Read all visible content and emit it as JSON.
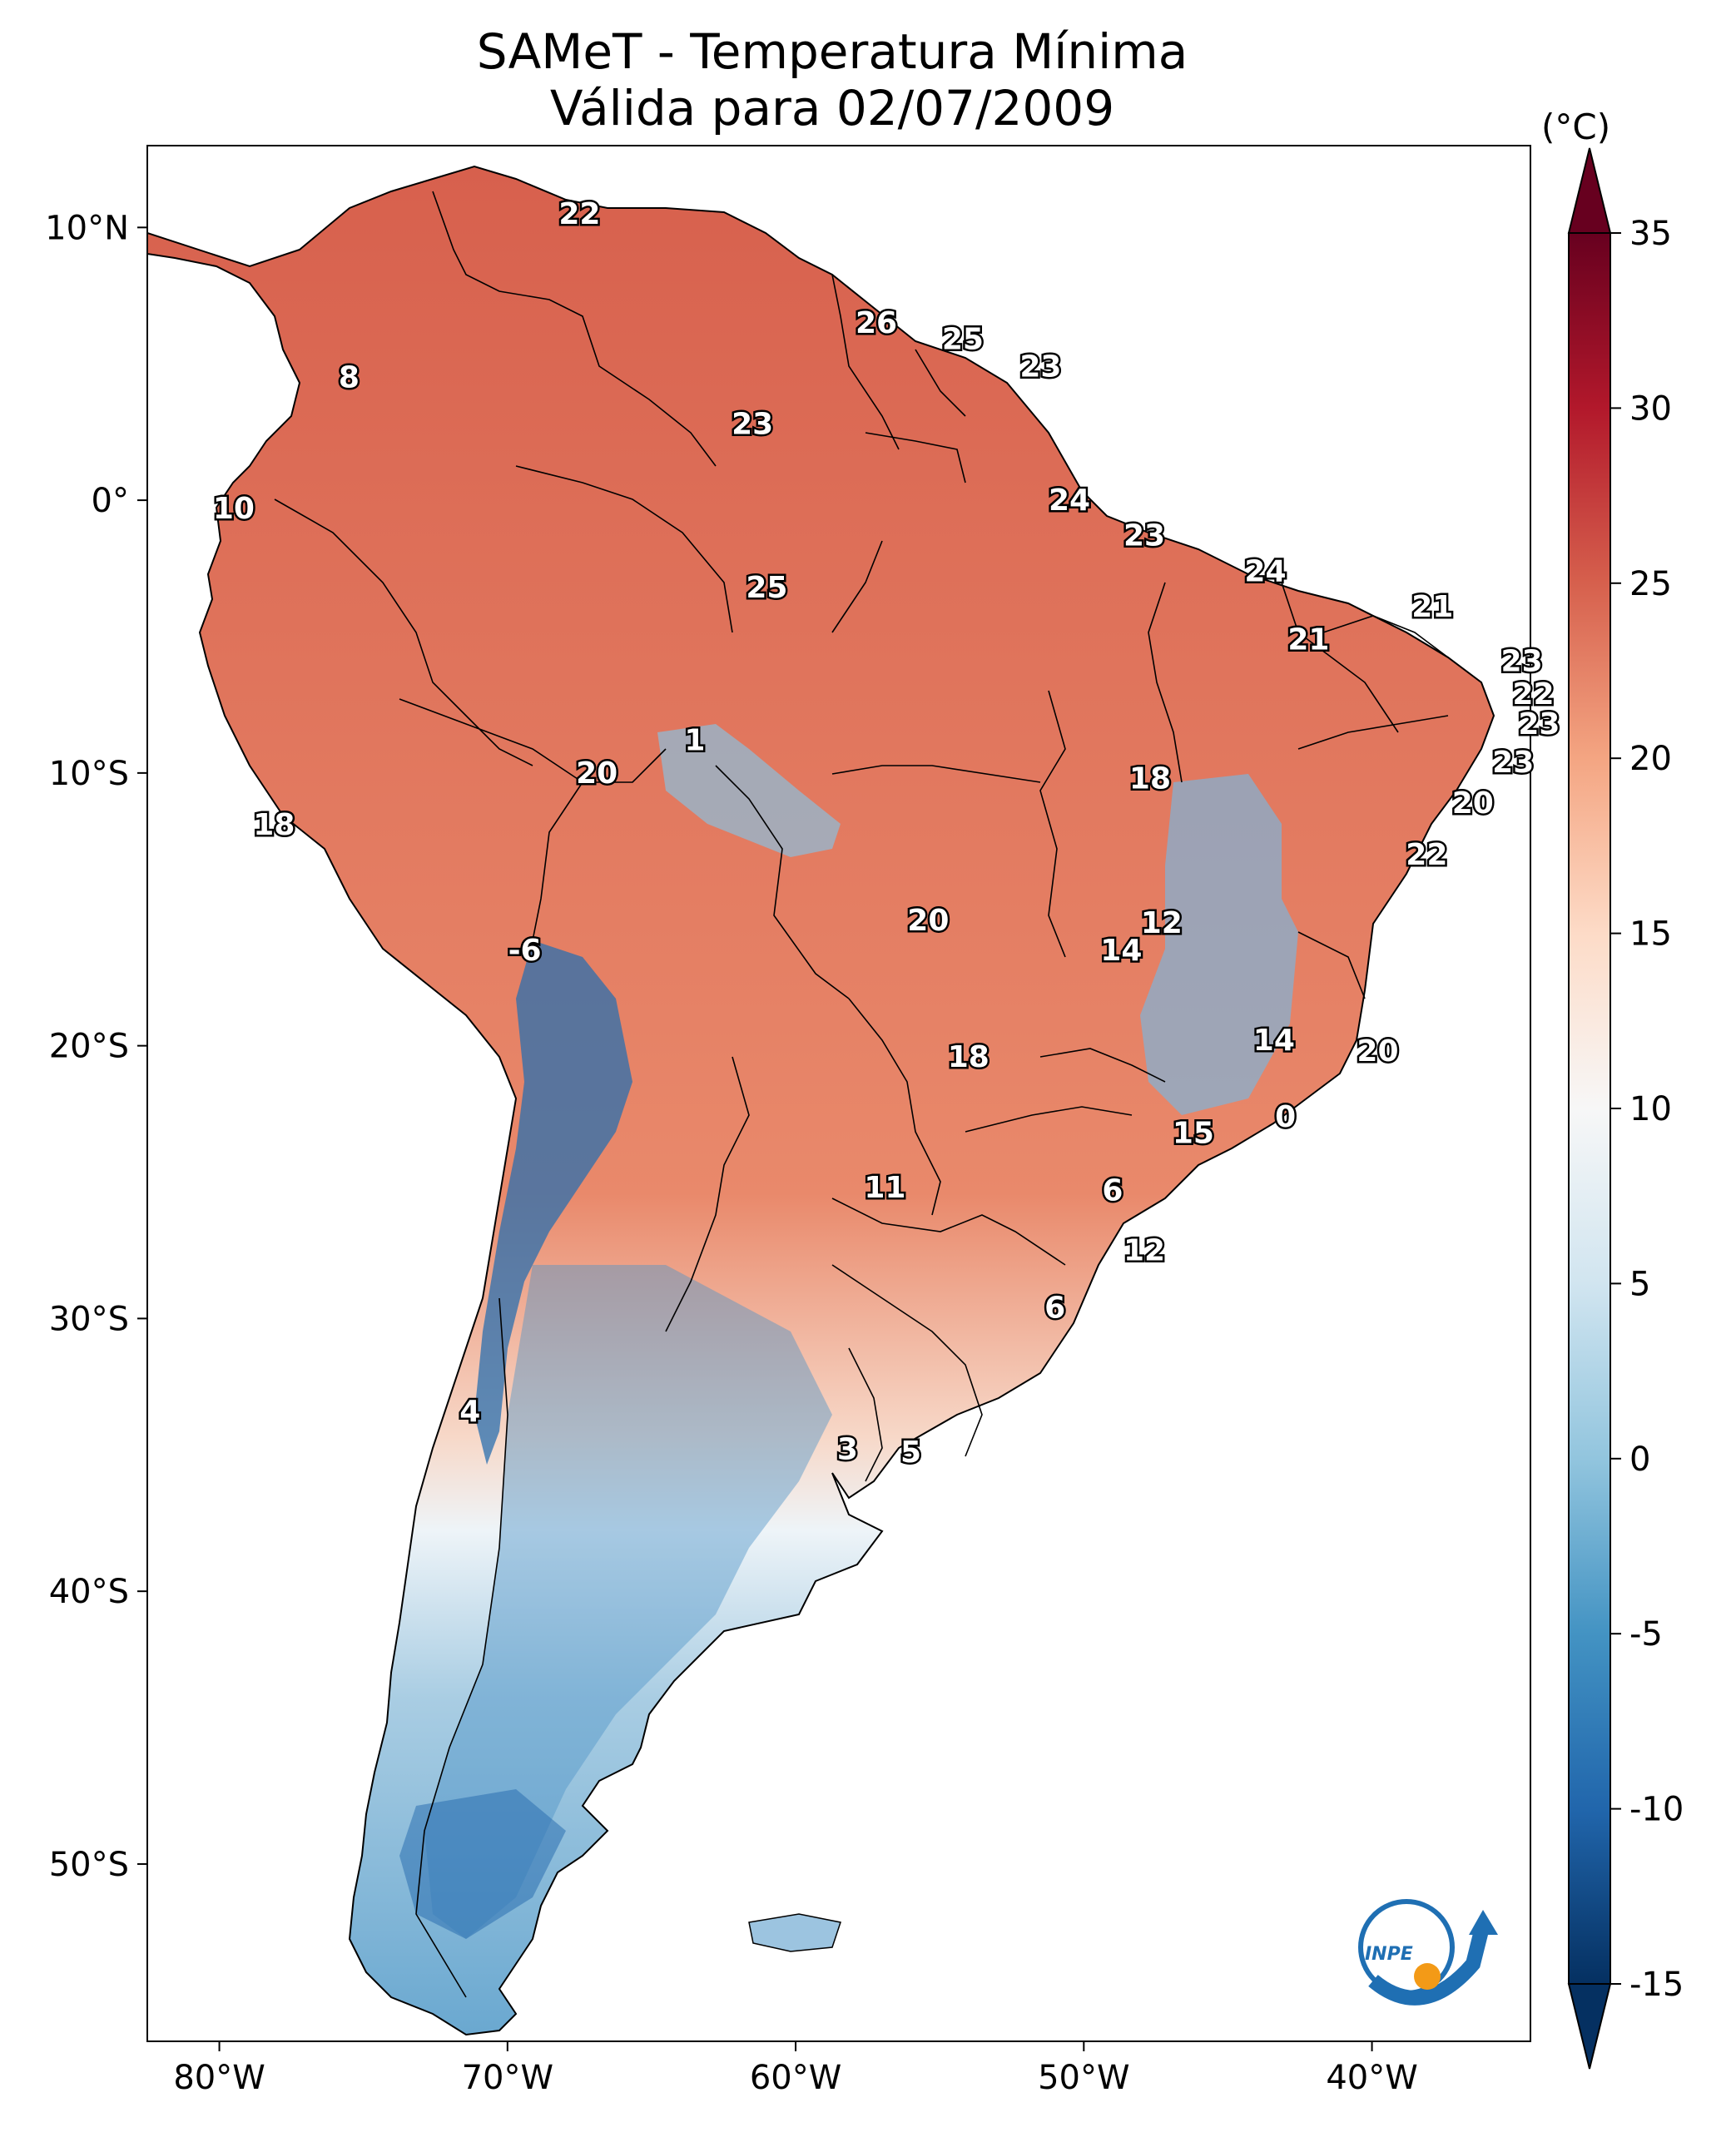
{
  "title": "SAMeT - Temperatura Mínima",
  "subtitle": "Válida para 02/07/2009",
  "colorbar": {
    "unit": "(°C)",
    "ticks": [
      "35",
      "30",
      "25",
      "20",
      "15",
      "10",
      "5",
      "0",
      "-5",
      "-10",
      "-15"
    ],
    "min": -15,
    "max": 35,
    "colors": [
      "#053061",
      "#2166ac",
      "#4393c3",
      "#92c5de",
      "#d1e5f0",
      "#f7f7f7",
      "#fddbc7",
      "#f4a582",
      "#d6604d",
      "#b2182b",
      "#67001f"
    ]
  },
  "axes": {
    "lon_labels": [
      "80°W",
      "70°W",
      "60°W",
      "50°W",
      "40°W"
    ],
    "lat_labels": [
      "10°N",
      "0°",
      "10°S",
      "20°S",
      "30°S",
      "40°S",
      "50°S"
    ]
  },
  "logo_text": "INPE",
  "map_values": [
    {
      "text": "22",
      "lon": -67.5,
      "lat": 10.5
    },
    {
      "text": "26",
      "lon": -57.2,
      "lat": 6.5
    },
    {
      "text": "25",
      "lon": -54.2,
      "lat": 5.9
    },
    {
      "text": "23",
      "lon": -51.5,
      "lat": 4.9
    },
    {
      "text": "8",
      "lon": -75.5,
      "lat": 4.5
    },
    {
      "text": "23",
      "lon": -61.5,
      "lat": 2.8
    },
    {
      "text": "24",
      "lon": -50.5,
      "lat": 0.0
    },
    {
      "text": "10",
      "lon": -79.5,
      "lat": -0.3
    },
    {
      "text": "23",
      "lon": -47.9,
      "lat": -1.3
    },
    {
      "text": "24",
      "lon": -43.7,
      "lat": -2.6
    },
    {
      "text": "25",
      "lon": -61.0,
      "lat": -3.2
    },
    {
      "text": "21",
      "lon": -37.9,
      "lat": -3.9
    },
    {
      "text": "21",
      "lon": -42.2,
      "lat": -5.1
    },
    {
      "text": "23",
      "lon": -34.8,
      "lat": -5.9
    },
    {
      "text": "22",
      "lon": -34.4,
      "lat": -7.1
    },
    {
      "text": "23",
      "lon": -34.2,
      "lat": -8.2
    },
    {
      "text": "1",
      "lon": -63.5,
      "lat": -8.8
    },
    {
      "text": "20",
      "lon": -66.9,
      "lat": -10.0
    },
    {
      "text": "18",
      "lon": -47.7,
      "lat": -10.2
    },
    {
      "text": "23",
      "lon": -35.1,
      "lat": -9.6
    },
    {
      "text": "20",
      "lon": -36.5,
      "lat": -11.1
    },
    {
      "text": "18",
      "lon": -78.1,
      "lat": -11.9
    },
    {
      "text": "22",
      "lon": -38.1,
      "lat": -13.0
    },
    {
      "text": "12",
      "lon": -47.3,
      "lat": -15.5
    },
    {
      "text": "20",
      "lon": -55.4,
      "lat": -15.4
    },
    {
      "text": "-6",
      "lon": -69.4,
      "lat": -16.5
    },
    {
      "text": "14",
      "lon": -48.7,
      "lat": -16.5
    },
    {
      "text": "14",
      "lon": -43.4,
      "lat": -19.8
    },
    {
      "text": "20",
      "lon": -39.8,
      "lat": -20.2
    },
    {
      "text": "18",
      "lon": -54.0,
      "lat": -20.4
    },
    {
      "text": "0",
      "lon": -43.0,
      "lat": -22.6
    },
    {
      "text": "15",
      "lon": -46.2,
      "lat": -23.2
    },
    {
      "text": "11",
      "lon": -56.9,
      "lat": -25.2
    },
    {
      "text": "6",
      "lon": -49.0,
      "lat": -25.3
    },
    {
      "text": "12",
      "lon": -47.9,
      "lat": -27.5
    },
    {
      "text": "6",
      "lon": -51.0,
      "lat": -29.6
    },
    {
      "text": "4",
      "lon": -71.3,
      "lat": -33.4
    },
    {
      "text": "3",
      "lon": -58.2,
      "lat": -34.8
    },
    {
      "text": "5",
      "lon": -56.0,
      "lat": -34.9
    }
  ]
}
